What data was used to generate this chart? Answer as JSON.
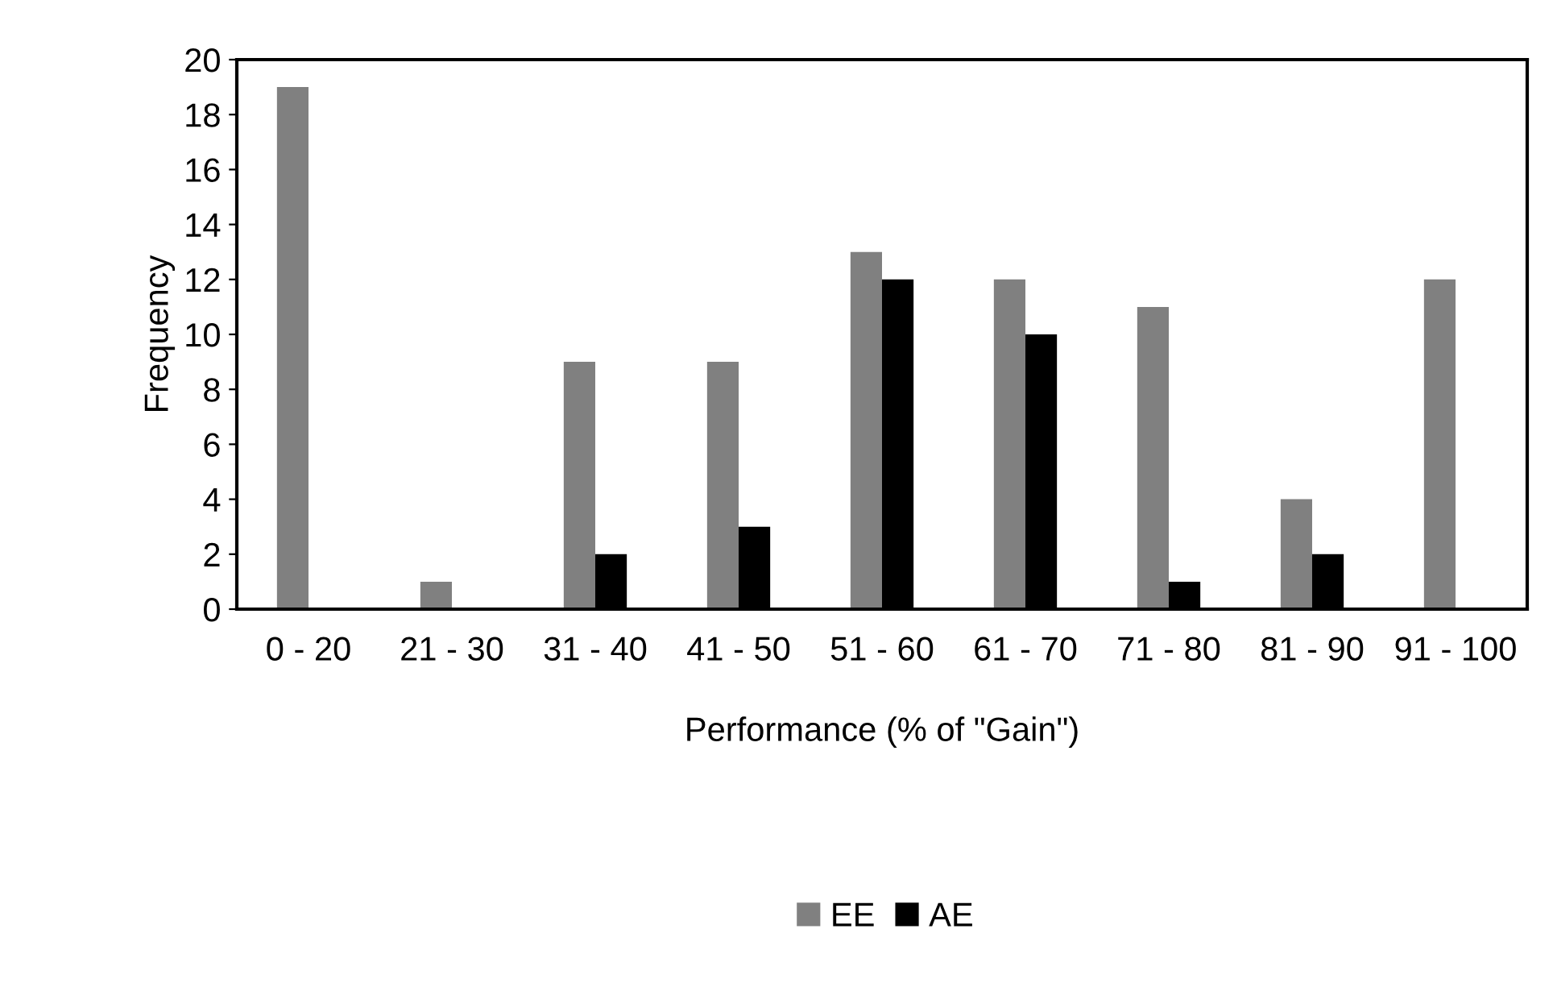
{
  "chart_data": {
    "type": "bar",
    "xlabel": "Performance (% of \"Gain\")",
    "ylabel": "Frequency",
    "categories": [
      "0 - 20",
      "21 - 30",
      "31 - 40",
      "41 - 50",
      "51 - 60",
      "61 - 70",
      "71 - 80",
      "81 - 90",
      "91 - 100"
    ],
    "series": [
      {
        "name": "EE",
        "color": "#808080",
        "values": [
          19,
          1,
          9,
          9,
          13,
          12,
          11,
          4,
          12
        ]
      },
      {
        "name": "AE",
        "color": "#000000",
        "values": [
          0,
          0,
          2,
          3,
          12,
          10,
          1,
          2,
          0
        ]
      }
    ],
    "ylim": [
      0,
      20
    ],
    "yticks": [
      0,
      2,
      4,
      6,
      8,
      10,
      12,
      14,
      16,
      18,
      20
    ],
    "grid": false,
    "legend": "bottom"
  }
}
